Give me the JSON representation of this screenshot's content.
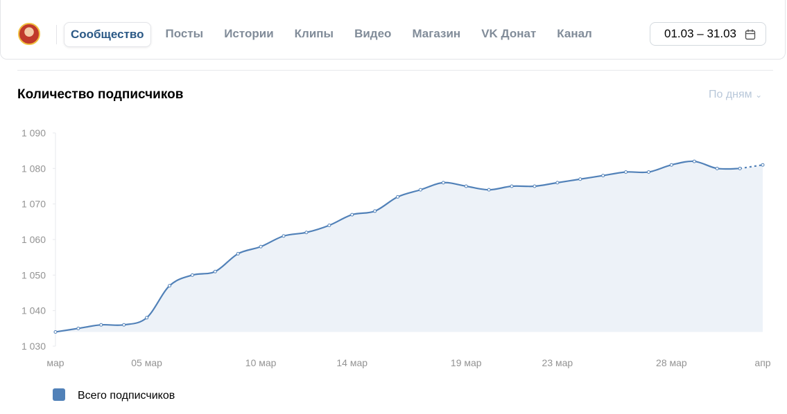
{
  "nav": {
    "tabs": [
      "Сообщество",
      "Посты",
      "Истории",
      "Клипы",
      "Видео",
      "Магазин",
      "VK Донат",
      "Канал"
    ]
  },
  "date_range": "01.03 – 31.03",
  "period_select": "По дням",
  "chart_data": {
    "type": "line",
    "title": "Количество подписчиков",
    "categories": [
      "мар",
      null,
      null,
      null,
      "05 мар",
      null,
      null,
      null,
      null,
      "10 мар",
      null,
      null,
      null,
      "14 мар",
      null,
      null,
      null,
      null,
      "19 мар",
      null,
      null,
      null,
      "23 мар",
      null,
      null,
      null,
      null,
      "28 мар",
      null,
      null,
      null,
      "апр"
    ],
    "series": [
      {
        "name": "Всего подписчиков",
        "color": "#5181b8",
        "values": [
          1034,
          1035,
          1036,
          1036,
          1038,
          1047,
          1050,
          1051,
          1056,
          1058,
          1061,
          1062,
          1064,
          1067,
          1068,
          1072,
          1074,
          1076,
          1075,
          1074,
          1075,
          1075,
          1076,
          1077,
          1078,
          1079,
          1079,
          1081,
          1082,
          1080,
          1080,
          1081
        ]
      }
    ],
    "ylim": [
      1030,
      1090
    ],
    "yticks": [
      {
        "value": 1030,
        "label": "1 030"
      },
      {
        "value": 1040,
        "label": "1 040"
      },
      {
        "value": 1050,
        "label": "1 050"
      },
      {
        "value": 1060,
        "label": "1 060"
      },
      {
        "value": 1070,
        "label": "1 070"
      },
      {
        "value": 1080,
        "label": "1 080"
      },
      {
        "value": 1090,
        "label": "1 090"
      }
    ],
    "legend": "bottom-left"
  }
}
